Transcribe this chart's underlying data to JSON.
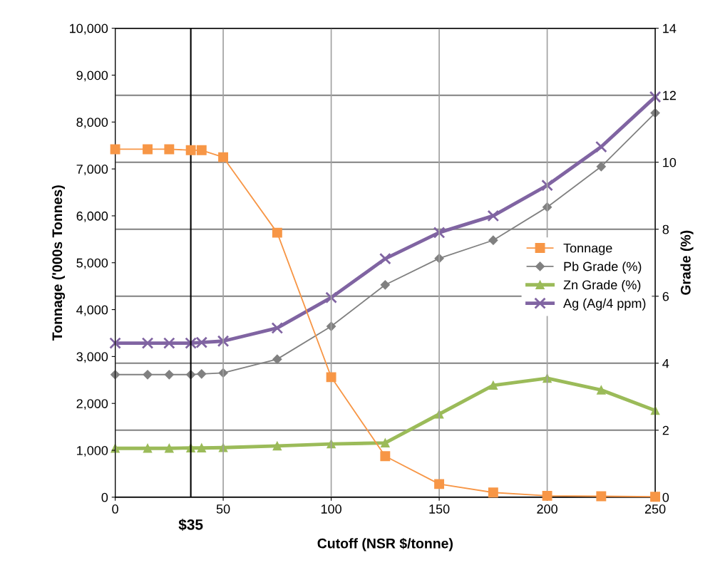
{
  "chart_data": {
    "type": "line",
    "xlabel": "Cutoff (NSR $/tonne)",
    "ylabel": "Tonnage ('000s Tonnes)",
    "y2label": "Grade (%)",
    "x": [
      0,
      15,
      25,
      35,
      40,
      50,
      75,
      100,
      125,
      150,
      175,
      200,
      225,
      250
    ],
    "series": [
      {
        "name": "Tonnage",
        "color": "#f79646",
        "marker": "square",
        "values": [
          7420,
          7420,
          7420,
          7400,
          7400,
          7250,
          5640,
          2560,
          875,
          280,
          100,
          30,
          20,
          10
        ]
      },
      {
        "name": "Pb Grade (%)",
        "color": "#808080",
        "marker": "diamond",
        "axis": "y2",
        "values": [
          3.66,
          3.66,
          3.66,
          3.66,
          3.68,
          3.71,
          4.12,
          5.1,
          6.34,
          7.13,
          7.67,
          8.66,
          9.87,
          11.47
        ]
      },
      {
        "name": "Zn Grade (%)",
        "color": "#9bbb59",
        "marker": "triangle",
        "axis": "y2",
        "values": [
          1.46,
          1.46,
          1.46,
          1.47,
          1.47,
          1.48,
          1.53,
          1.59,
          1.62,
          2.48,
          3.34,
          3.55,
          3.2,
          2.59
        ]
      },
      {
        "name": "Ag (Ag/4 ppm)",
        "color": "#8064a2",
        "marker": "cross",
        "axis": "y2",
        "values": [
          4.6,
          4.6,
          4.6,
          4.6,
          4.62,
          4.66,
          5.05,
          5.96,
          7.12,
          7.9,
          8.4,
          9.31,
          10.46,
          11.95
        ]
      }
    ],
    "xlim": [
      0,
      250
    ],
    "xticks": [
      0,
      50,
      100,
      150,
      200,
      250
    ],
    "ylim": [
      0,
      10000
    ],
    "yticks": [
      0,
      {
        "value": 1000,
        "label": "1,000"
      },
      {
        "value": 2000,
        "label": "2,000"
      },
      {
        "value": 3000,
        "label": "3,000"
      },
      {
        "value": 4000,
        "label": "4,000"
      },
      {
        "value": 5000,
        "label": "5,000"
      },
      {
        "value": 6000,
        "label": "6,000"
      },
      {
        "value": 7000,
        "label": "7,000"
      },
      {
        "value": 8000,
        "label": "8,000"
      },
      {
        "value": 9000,
        "label": "9,000"
      },
      {
        "value": 10000,
        "label": "10,000"
      }
    ],
    "y2lim": [
      0,
      14
    ],
    "y2ticks": [
      0,
      2,
      4,
      6,
      8,
      10,
      12,
      14
    ],
    "ref_lines": [
      {
        "axis": "x",
        "value": 35,
        "label": "$35",
        "color": "#000000"
      }
    ],
    "grid": true,
    "legend": "right",
    "line_style": "solid"
  }
}
